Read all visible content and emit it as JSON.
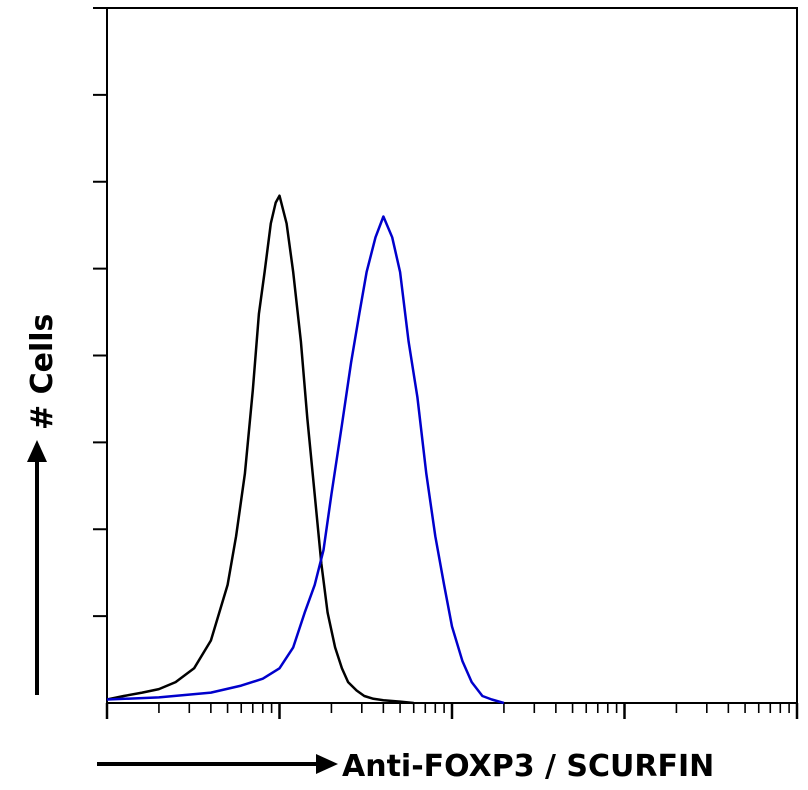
{
  "chart_data": {
    "type": "line",
    "title": "",
    "xlabel": "Anti-FOXP3 / SCURFIN",
    "ylabel": "# Cells",
    "x_scale": "log",
    "xlim": [
      1,
      10000
    ],
    "ylim": [
      0,
      100
    ],
    "grid": false,
    "series": [
      {
        "color": "#000000",
        "x": [
          1,
          1.25,
          1.6,
          2,
          2.5,
          3.2,
          4,
          5,
          5.6,
          6.3,
          7,
          7.6,
          8.2,
          8.9,
          9.5,
          10,
          11,
          12,
          13.3,
          14.5,
          16,
          17.5,
          19,
          21,
          23,
          25,
          28,
          31,
          35,
          40,
          50,
          60
        ],
        "y": [
          0.5,
          1,
          1.5,
          2,
          3,
          5,
          9,
          17,
          24,
          33,
          45,
          56,
          62,
          69,
          72,
          73,
          69,
          62,
          52,
          41,
          30,
          20,
          13,
          8,
          5,
          3,
          1.8,
          1,
          0.6,
          0.4,
          0.2,
          0
        ]
      },
      {
        "color": "#0000cc",
        "x": [
          1,
          2,
          4,
          6,
          8,
          10,
          12,
          14,
          16,
          18,
          20,
          23,
          26,
          29,
          32,
          36,
          40,
          45,
          50,
          56,
          63,
          71,
          80,
          90,
          100,
          115,
          130,
          150,
          170,
          200
        ],
        "y": [
          0.5,
          0.8,
          1.5,
          2.5,
          3.5,
          5,
          8,
          13,
          17,
          22,
          30,
          40,
          49,
          56,
          62,
          67,
          70,
          67,
          62,
          52,
          44,
          33,
          24,
          17,
          11,
          6,
          3,
          1,
          0.5,
          0
        ]
      }
    ]
  }
}
